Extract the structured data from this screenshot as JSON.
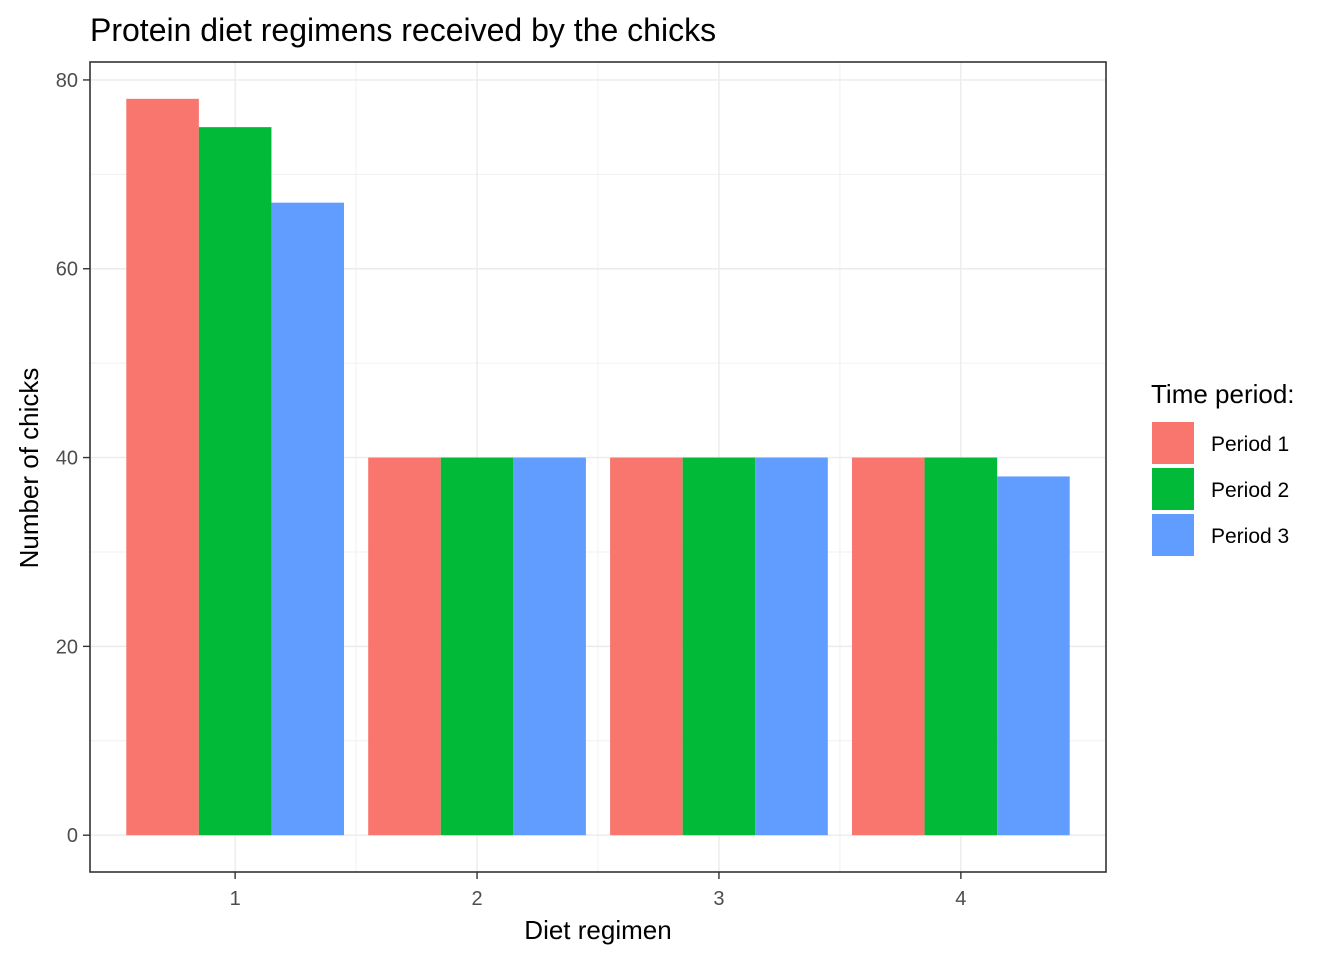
{
  "chart_data": {
    "type": "bar",
    "title": "Protein diet regimens received by the chicks",
    "xlabel": "Diet regimen",
    "ylabel": "Number of chicks",
    "categories": [
      "1",
      "2",
      "3",
      "4"
    ],
    "series": [
      {
        "name": "Period 1",
        "color": "#F8766D",
        "values": [
          78,
          40,
          40,
          40
        ]
      },
      {
        "name": "Period 2",
        "color": "#00BA38",
        "values": [
          75,
          40,
          40,
          40
        ]
      },
      {
        "name": "Period 3",
        "color": "#619CFF",
        "values": [
          67,
          40,
          40,
          38
        ]
      }
    ],
    "ylim": [
      -3.9,
      81.9
    ],
    "yticks": [
      0,
      20,
      40,
      60,
      80
    ],
    "ytick_labels": [
      "0",
      "20",
      "40",
      "60",
      "80"
    ],
    "grid": true,
    "legend": {
      "title": "Time period:",
      "position": "right"
    }
  }
}
